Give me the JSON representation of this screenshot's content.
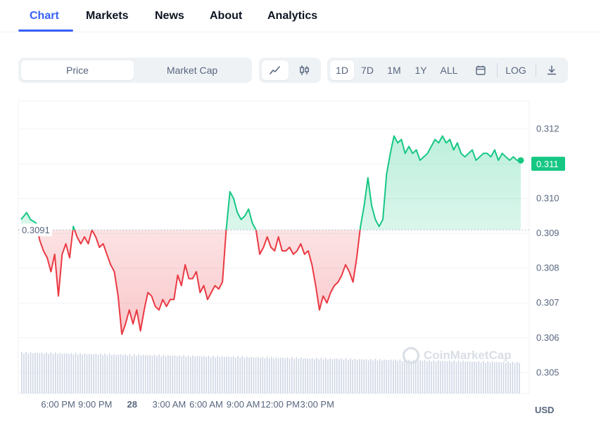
{
  "tabs": [
    {
      "label": "Chart",
      "active": true
    },
    {
      "label": "Markets",
      "active": false
    },
    {
      "label": "News",
      "active": false
    },
    {
      "label": "About",
      "active": false
    },
    {
      "label": "Analytics",
      "active": false
    }
  ],
  "toolbar": {
    "metric_options": [
      "Price",
      "Market Cap"
    ],
    "selected_metric": "Price",
    "chart_styles": [
      "line-chart-icon",
      "candlestick-icon"
    ],
    "selected_style": "line-chart-icon",
    "ranges": [
      "1D",
      "7D",
      "1M",
      "1Y",
      "ALL"
    ],
    "selected_range": "1D",
    "calendar_icon": "calendar-icon",
    "log_label": "LOG",
    "download_icon": "download-icon"
  },
  "watermark": "CoinMarketCap",
  "currency_label": "USD",
  "colors": {
    "accent": "#3861fb",
    "up": "#16c784",
    "down": "#ea3943",
    "grid": "#eff2f5",
    "volume": "#cfd6e4"
  },
  "chart_data": {
    "type": "line",
    "title": "",
    "xlabel": "",
    "ylabel": "",
    "reference_value": 0.3091,
    "reference_label": "0.3091",
    "current_value": 0.311,
    "current_label": "0.311",
    "ylim": [
      0.3044,
      0.3128
    ],
    "y_ticks": [
      0.305,
      0.306,
      0.307,
      0.308,
      0.309,
      0.31,
      0.311,
      0.312
    ],
    "y_tick_labels": [
      "0.305",
      "0.306",
      "0.307",
      "0.308",
      "0.309",
      "0.310",
      "0.311",
      "0.312"
    ],
    "xlim": [
      0,
      40.5
    ],
    "x_ticks": [
      3,
      6,
      9,
      12,
      15,
      18,
      21,
      24,
      27,
      30,
      33
    ],
    "x_tick_labels": [
      "6:00 PM",
      "9:00 PM",
      "28",
      "3:00 AM",
      "6:00 AM",
      "9:00 AM",
      "12:00 PM",
      "3:00 PM"
    ],
    "x_tick_positions": [
      3,
      6,
      9,
      12,
      15,
      18,
      21,
      24
    ],
    "x_tick_bold": [
      false,
      false,
      true,
      false,
      false,
      false,
      false,
      false
    ],
    "series": [
      {
        "x": [
          0.0,
          0.3,
          0.5,
          0.8,
          1.0,
          1.2,
          1.4,
          1.6,
          1.8,
          2.0,
          2.2,
          2.4,
          2.6,
          2.8,
          3.0,
          3.2,
          3.4,
          3.6,
          3.8,
          4.0,
          4.2,
          4.4,
          4.6,
          4.8,
          5.0,
          5.2,
          5.4,
          5.6,
          5.8,
          6.0,
          6.2,
          6.4,
          6.6,
          6.8,
          7.0,
          7.2,
          7.4,
          7.6,
          7.8,
          8.0,
          8.2,
          8.4,
          8.6,
          8.8,
          9.0,
          9.2,
          9.4,
          9.6,
          9.8,
          10.0,
          10.2,
          10.4,
          10.6,
          10.8,
          11.0,
          11.2,
          11.4,
          11.6,
          11.8,
          12.0,
          12.2,
          12.4,
          12.6,
          12.8,
          13.0,
          13.2,
          13.4,
          13.6,
          13.8,
          14.0,
          14.2,
          14.4,
          14.6,
          14.8,
          15.0,
          15.2,
          15.4,
          15.6,
          15.8,
          16.0,
          16.2,
          16.4,
          16.6,
          16.8,
          17.0,
          17.2,
          17.4,
          17.6,
          17.8,
          18.0,
          18.2,
          18.4,
          18.6,
          18.8,
          19.0,
          19.2,
          19.4,
          19.6,
          19.8,
          20.0,
          20.2,
          20.4,
          20.6,
          20.8,
          21.0,
          21.2,
          21.4,
          21.6,
          21.8,
          22.0,
          22.2,
          22.4,
          22.6,
          22.8,
          23.0,
          23.2,
          23.4,
          23.6,
          23.8,
          24.0,
          24.2,
          24.4,
          24.6,
          24.8,
          25.0,
          25.2,
          25.4,
          25.6,
          25.8,
          26.0,
          26.2,
          26.4,
          26.6,
          26.8
        ],
        "y": [
          0.3094,
          0.3096,
          0.3094,
          0.3093,
          0.3088,
          0.3085,
          0.3083,
          0.3079,
          0.3084,
          0.3072,
          0.3084,
          0.3087,
          0.3083,
          0.3092,
          0.3089,
          0.3087,
          0.3089,
          0.3087,
          0.3091,
          0.3089,
          0.3086,
          0.3087,
          0.3084,
          0.3081,
          0.3079,
          0.3072,
          0.3061,
          0.3064,
          0.3068,
          0.3064,
          0.3068,
          0.3062,
          0.3068,
          0.3073,
          0.3072,
          0.3069,
          0.3068,
          0.3071,
          0.3069,
          0.3071,
          0.3071,
          0.3078,
          0.3075,
          0.3081,
          0.3077,
          0.3077,
          0.3079,
          0.3073,
          0.3075,
          0.3071,
          0.3073,
          0.3075,
          0.3074,
          0.3076,
          0.3091,
          0.3102,
          0.31,
          0.3096,
          0.3094,
          0.3095,
          0.3097,
          0.3093,
          0.3091,
          0.3084,
          0.3086,
          0.3089,
          0.3086,
          0.3085,
          0.3089,
          0.3085,
          0.3085,
          0.3086,
          0.3084,
          0.3085,
          0.3087,
          0.3084,
          0.3085,
          0.3081,
          0.3075,
          0.3068,
          0.3072,
          0.307,
          0.3073,
          0.3075,
          0.3076,
          0.3078,
          0.3081,
          0.3079,
          0.3076,
          0.3083,
          0.3092,
          0.3098,
          0.3106,
          0.3098,
          0.3094,
          0.3092,
          0.3094,
          0.3107,
          0.3113,
          0.3118,
          0.3116,
          0.3117,
          0.3113,
          0.3115,
          0.3113,
          0.3114,
          0.3111,
          0.3112,
          0.3113,
          0.3115,
          0.3117,
          0.3116,
          0.3118,
          0.3116,
          0.3117,
          0.3114,
          0.3116,
          0.3113,
          0.3112,
          0.3113,
          0.3114,
          0.3111,
          0.3112,
          0.3113,
          0.3113,
          0.3112,
          0.3114,
          0.3111,
          0.3113,
          0.3112,
          0.3111,
          0.3112,
          0.3111,
          0.3111
        ]
      }
    ],
    "volume_note": ""
  }
}
